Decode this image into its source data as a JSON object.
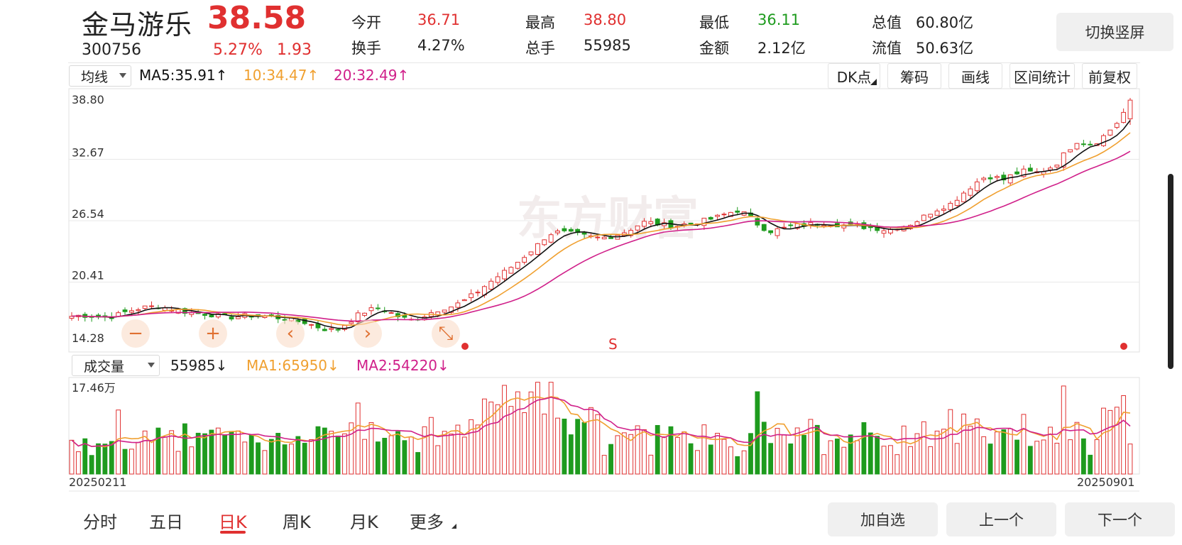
{
  "stock": {
    "name": "金马游乐",
    "price": "38.58",
    "code": "300756",
    "change_pct": "5.27%",
    "change": "1.93"
  },
  "stats": [
    {
      "label": "今开",
      "value": "36.71",
      "color": "#e03030"
    },
    {
      "label": "最高",
      "value": "38.80",
      "color": "#e03030"
    },
    {
      "label": "最低",
      "value": "36.11",
      "color": "#1e9b1e"
    },
    {
      "label": "总值",
      "value": "60.80亿",
      "color": "#222222"
    },
    {
      "label": "换手",
      "value": "4.27%",
      "color": "#222222"
    },
    {
      "label": "总手",
      "value": "55985",
      "color": "#222222"
    },
    {
      "label": "金额",
      "value": "2.12亿",
      "color": "#222222"
    },
    {
      "label": "流值",
      "value": "50.63亿",
      "color": "#222222"
    }
  ],
  "buttons": {
    "rotate": "切换竖屏",
    "dk": "DK点",
    "chips": "筹码",
    "draw": "画线",
    "interval": "区间统计",
    "adjust": "前复权"
  },
  "main_chart": {
    "indicator_select": "均线",
    "ma5": "MA5:35.91",
    "ma10": "10:34.47",
    "ma20": "20:32.49",
    "up_arrow": "↑",
    "y_ticks": [
      "38.80",
      "32.67",
      "26.54",
      "20.41",
      "14.28"
    ],
    "watermark": "东方财富",
    "s_marker": "S",
    "colors": {
      "up": "#e03030",
      "down": "#1e9b1e",
      "ma5": "#111111",
      "ma10": "#f0a030",
      "ma20": "#d0208a"
    }
  },
  "drawing_tools": [
    {
      "name": "minus-tool",
      "glyph": "−"
    },
    {
      "name": "plus-tool",
      "glyph": "+"
    },
    {
      "name": "back-tool",
      "glyph": "‹"
    },
    {
      "name": "forward-tool",
      "glyph": "›"
    },
    {
      "name": "expand-tool",
      "glyph": "⤡"
    }
  ],
  "volume_chart": {
    "indicator_select": "成交量",
    "volume": "55985",
    "ma1": "MA1:65950",
    "ma2": "MA2:54220",
    "down_arrow": "↓",
    "y_max": "17.46万",
    "start_date": "20250211",
    "end_date": "20250901"
  },
  "tabs": [
    "分时",
    "五日",
    "日K",
    "周K",
    "月K",
    "更多"
  ],
  "actions": {
    "add_watch": "加自选",
    "prev": "上一个",
    "next": "下一个"
  },
  "chart_data": {
    "type": "candlestick",
    "price_range": [
      14.28,
      38.8
    ],
    "close_path": [
      17.0,
      17.1,
      17.0,
      16.9,
      17.0,
      17.4,
      17.7,
      17.9,
      18.0,
      17.8,
      17.6,
      17.4,
      17.3,
      17.2,
      17.0,
      16.9,
      17.0,
      17.1,
      17.0,
      16.9,
      16.8,
      16.5,
      16.4,
      16.0,
      15.7,
      15.6,
      16.3,
      17.1,
      17.6,
      17.8,
      17.4,
      16.9,
      16.6,
      16.9,
      17.4,
      17.8,
      18.0,
      18.5,
      19.2,
      20.0,
      20.8,
      21.5,
      22.3,
      23.2,
      24.1,
      25.2,
      25.4,
      25.3,
      25.1,
      24.9,
      24.8,
      25.0,
      25.3,
      25.8,
      26.4,
      26.3,
      26.1,
      26.0,
      26.2,
      26.4,
      26.6,
      26.9,
      27.3,
      27.6,
      27.0,
      26.0,
      25.5,
      25.7,
      26.0,
      26.1,
      26.2,
      26.3,
      26.2,
      26.1,
      26.0,
      25.9,
      25.8,
      25.6,
      25.9,
      26.1,
      26.6,
      27.3,
      27.8,
      28.2,
      29.1,
      30.0,
      30.8,
      31.0,
      30.6,
      31.2,
      31.5,
      31.3,
      31.6,
      32.2,
      33.5,
      34.5,
      34.2,
      34.5,
      35.5,
      36.6,
      38.58
    ],
    "volume_range": [
      0,
      174600
    ],
    "latest": {
      "open": 36.71,
      "high": 38.8,
      "low": 36.11,
      "close": 38.58,
      "volume": 55985
    }
  }
}
